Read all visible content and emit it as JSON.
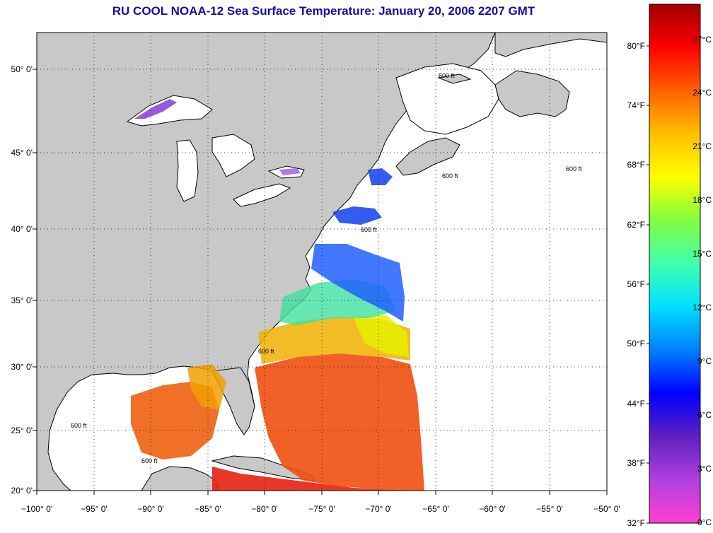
{
  "title": "RU COOL  NOAA-12  Sea Surface Temperature:  January 20, 2006 2207 GMT",
  "map": {
    "lon_labels": [
      "−100° 0'",
      "−95° 0'",
      "−90° 0'",
      "−85° 0'",
      "−80° 0'",
      "−75° 0'",
      "−70° 0'",
      "−65° 0'",
      "−60° 0'",
      "−55° 0'",
      "−50° 0'"
    ],
    "lat_labels": [
      "50° 0'",
      "45° 0'",
      "40° 0'",
      "35° 0'",
      "30° 0'",
      "25° 0'",
      "20° 0'"
    ],
    "contour_label": "600 ft",
    "colors": {
      "land": "#c8c8c8",
      "water": "#ffffff",
      "border": "#000000"
    }
  },
  "colorbar": {
    "fahrenheit_labels": [
      "80°F",
      "74°F",
      "68°F",
      "62°F",
      "56°F",
      "50°F",
      "44°F",
      "38°F",
      "32°F"
    ],
    "celsius_labels": [
      "27°C",
      "24°C",
      "21°C",
      "18°C",
      "15°C",
      "12°C",
      "9°C",
      "6°C",
      "3°C",
      "0°C"
    ],
    "gradient": [
      "#ff40d0",
      "#b040e0",
      "#6020c0",
      "#0000ff",
      "#0080ff",
      "#00e0ff",
      "#40ffb0",
      "#80ff40",
      "#ffff00",
      "#ffc000",
      "#ff6000",
      "#ff0000",
      "#a00000"
    ]
  }
}
